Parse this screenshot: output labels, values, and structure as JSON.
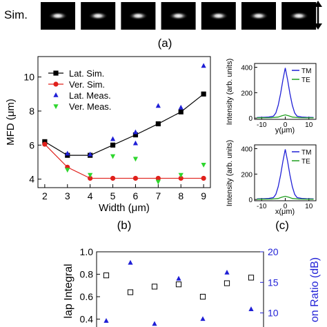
{
  "row_label": "Sim.",
  "panel_labels": {
    "a": "(a)",
    "b": "(b)",
    "c": "(c)"
  },
  "images": {
    "count": 7
  },
  "chart_data": [
    {
      "type": "line",
      "panel": "(b)",
      "xlabel": "Width (μm)",
      "ylabel": "MFD (μm)",
      "x_ticks": [
        "2",
        "3",
        "4",
        "5",
        "6",
        "7",
        "8",
        "9"
      ],
      "y_ticks": [
        "4",
        "6",
        "8",
        "10"
      ],
      "xlim": [
        1.7,
        9.3
      ],
      "ylim": [
        3.5,
        11.2
      ],
      "legend_position": "top-left",
      "series": [
        {
          "name": "Lat. Sim.",
          "marker": "square",
          "line": true,
          "color": "#000000",
          "x": [
            2,
            3,
            4,
            5,
            6,
            7,
            8,
            9
          ],
          "y": [
            6.2,
            5.4,
            5.4,
            6.0,
            6.6,
            7.25,
            7.95,
            9.0
          ]
        },
        {
          "name": "Ver. Sim.",
          "marker": "circle",
          "line": true,
          "color": "#e0201b",
          "x": [
            2,
            3,
            4,
            5,
            6,
            7,
            8,
            9
          ],
          "y": [
            6.05,
            4.7,
            4.05,
            4.05,
            4.05,
            4.05,
            4.05,
            4.05
          ]
        },
        {
          "name": "Lat. Meas.",
          "marker": "triangle-up",
          "line": false,
          "color": "#1f1fd6",
          "x": [
            3,
            4,
            5,
            6,
            6,
            7,
            8,
            9
          ],
          "y": [
            5.5,
            5.45,
            6.35,
            6.75,
            6.1,
            8.3,
            8.2,
            10.65
          ]
        },
        {
          "name": "Ver. Meas.",
          "marker": "triangle-down",
          "line": false,
          "color": "#2ed62e",
          "x": [
            3,
            4,
            5,
            6,
            7,
            8,
            9
          ],
          "y": [
            4.55,
            4.25,
            5.35,
            5.2,
            3.85,
            4.25,
            4.85
          ]
        }
      ]
    },
    {
      "type": "line",
      "panel": "(c) top",
      "xlabel": "y(μm)",
      "ylabel": "Intensity (arb. units)",
      "x_ticks": [
        "-10",
        "0",
        "10"
      ],
      "y_ticks": [
        "0",
        "200",
        "400"
      ],
      "xlim": [
        -13,
        13
      ],
      "ylim": [
        -10,
        430
      ],
      "legend_position": "top-right",
      "series": [
        {
          "name": "TM",
          "color": "#1f1fd6",
          "x": [
            -12,
            -9,
            -7,
            -5,
            -4,
            -3,
            -2,
            -1,
            0,
            1,
            2,
            3,
            4,
            5,
            7,
            9,
            12
          ],
          "y": [
            5,
            6,
            8,
            15,
            40,
            100,
            190,
            300,
            395,
            300,
            190,
            100,
            40,
            15,
            8,
            6,
            5
          ]
        },
        {
          "name": "TE",
          "color": "#1e9e1e",
          "x": [
            -12,
            -6,
            -3,
            -1.5,
            0,
            1.5,
            3,
            6,
            12
          ],
          "y": [
            2,
            3,
            8,
            18,
            25,
            18,
            8,
            3,
            2
          ]
        }
      ]
    },
    {
      "type": "line",
      "panel": "(c) bottom",
      "xlabel": "x(μm)",
      "ylabel": "Intensity (arb. units)",
      "x_ticks": [
        "-10",
        "0",
        "10"
      ],
      "y_ticks": [
        "0",
        "200",
        "400"
      ],
      "xlim": [
        -13,
        13
      ],
      "ylim": [
        -10,
        430
      ],
      "legend_position": "top-right",
      "series": [
        {
          "name": "TM",
          "color": "#1f1fd6",
          "x": [
            -12,
            -9,
            -7,
            -5,
            -4,
            -3,
            -2,
            -1,
            0,
            1,
            2,
            3,
            4,
            5,
            7,
            9,
            12
          ],
          "y": [
            5,
            6,
            8,
            15,
            40,
            100,
            190,
            300,
            395,
            300,
            190,
            100,
            40,
            15,
            8,
            6,
            5
          ]
        },
        {
          "name": "TE",
          "color": "#1e9e1e",
          "x": [
            -12,
            -6,
            -3,
            -1.5,
            0,
            1.5,
            3,
            6,
            12
          ],
          "y": [
            2,
            3,
            8,
            18,
            25,
            18,
            8,
            3,
            2
          ]
        }
      ]
    },
    {
      "type": "scatter",
      "panel": "bottom (partial)",
      "ylabel_left": "lap Integral",
      "ylabel_right": "on Ratio (dB)",
      "y_ticks_left": [
        "0.4",
        "0.6",
        "0.8",
        "1.0"
      ],
      "y_ticks_right": [
        "10",
        "15",
        "20"
      ],
      "ylim_left": [
        0.33,
        1.0
      ],
      "ylim_right": [
        7.7,
        20
      ],
      "x": [
        1,
        2,
        3,
        4,
        5,
        6,
        7
      ],
      "series": [
        {
          "axis": "left",
          "marker": "square-open",
          "color": "#000000",
          "y": [
            0.79,
            0.64,
            0.69,
            0.71,
            0.6,
            0.72,
            0.77
          ]
        },
        {
          "axis": "right",
          "marker": "triangle-up",
          "color": "#1f1fd6",
          "y": [
            8.7,
            18.2,
            8.2,
            15.6,
            9.0,
            16.6,
            10.6
          ]
        }
      ]
    }
  ]
}
